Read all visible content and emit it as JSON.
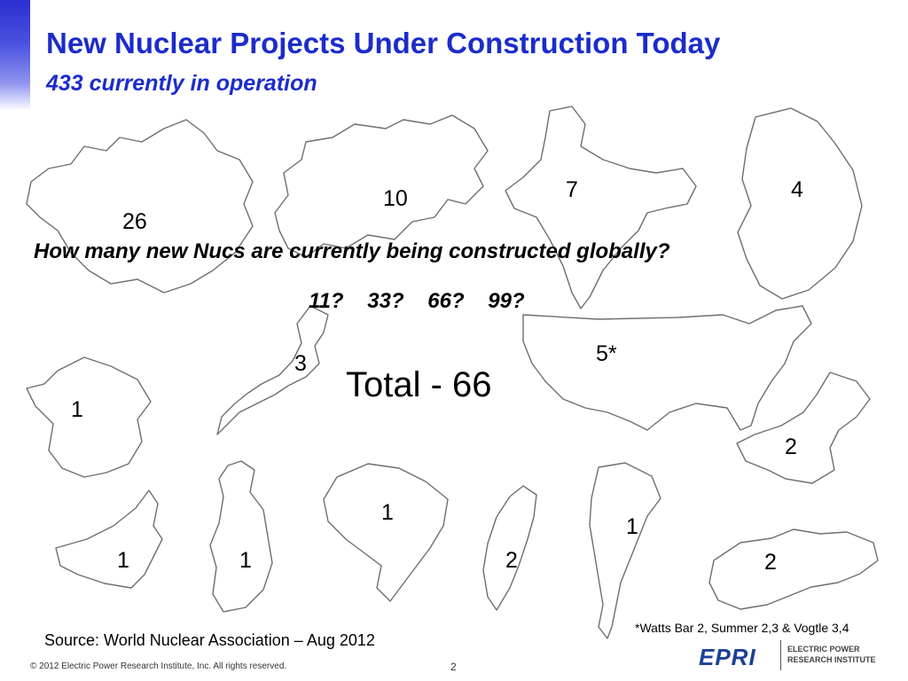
{
  "header": {
    "title": "New Nuclear Projects Under Construction Today",
    "subtitle": "433 currently in operation"
  },
  "maps": [
    {
      "name": "china-map",
      "count": "26"
    },
    {
      "name": "russia-map",
      "count": "10"
    },
    {
      "name": "india-map",
      "count": "7"
    },
    {
      "name": "south-korea-map",
      "count": "4"
    },
    {
      "name": "usa-map",
      "count": "5*"
    },
    {
      "name": "japan-map",
      "count": "3"
    },
    {
      "name": "france-map",
      "count": "1"
    },
    {
      "name": "pakistan-map",
      "count": "2"
    },
    {
      "name": "brazil-map",
      "count": "1"
    },
    {
      "name": "argentina-map",
      "count": "1"
    },
    {
      "name": "uae-map",
      "count": "1"
    },
    {
      "name": "finland-map",
      "count": "1"
    },
    {
      "name": "taiwan-map",
      "count": "2"
    },
    {
      "name": "slovakia-map",
      "count": "2"
    }
  ],
  "question": "How many new Nucs are currently being constructed globally?",
  "options": "11?    33?    66?    99?",
  "total": "Total - 66",
  "footnote": "*Watts Bar 2, Summer 2,3 & Vogtle 3,4",
  "source": "Source:  World Nuclear Association – Aug 2012",
  "footer": {
    "copyright": "© 2012 Electric Power Research Institute, Inc. All rights reserved.",
    "page": "2",
    "logo_mark": "EPRI",
    "logo_line1": "ELECTRIC POWER",
    "logo_line2": "RESEARCH INSTITUTE"
  }
}
